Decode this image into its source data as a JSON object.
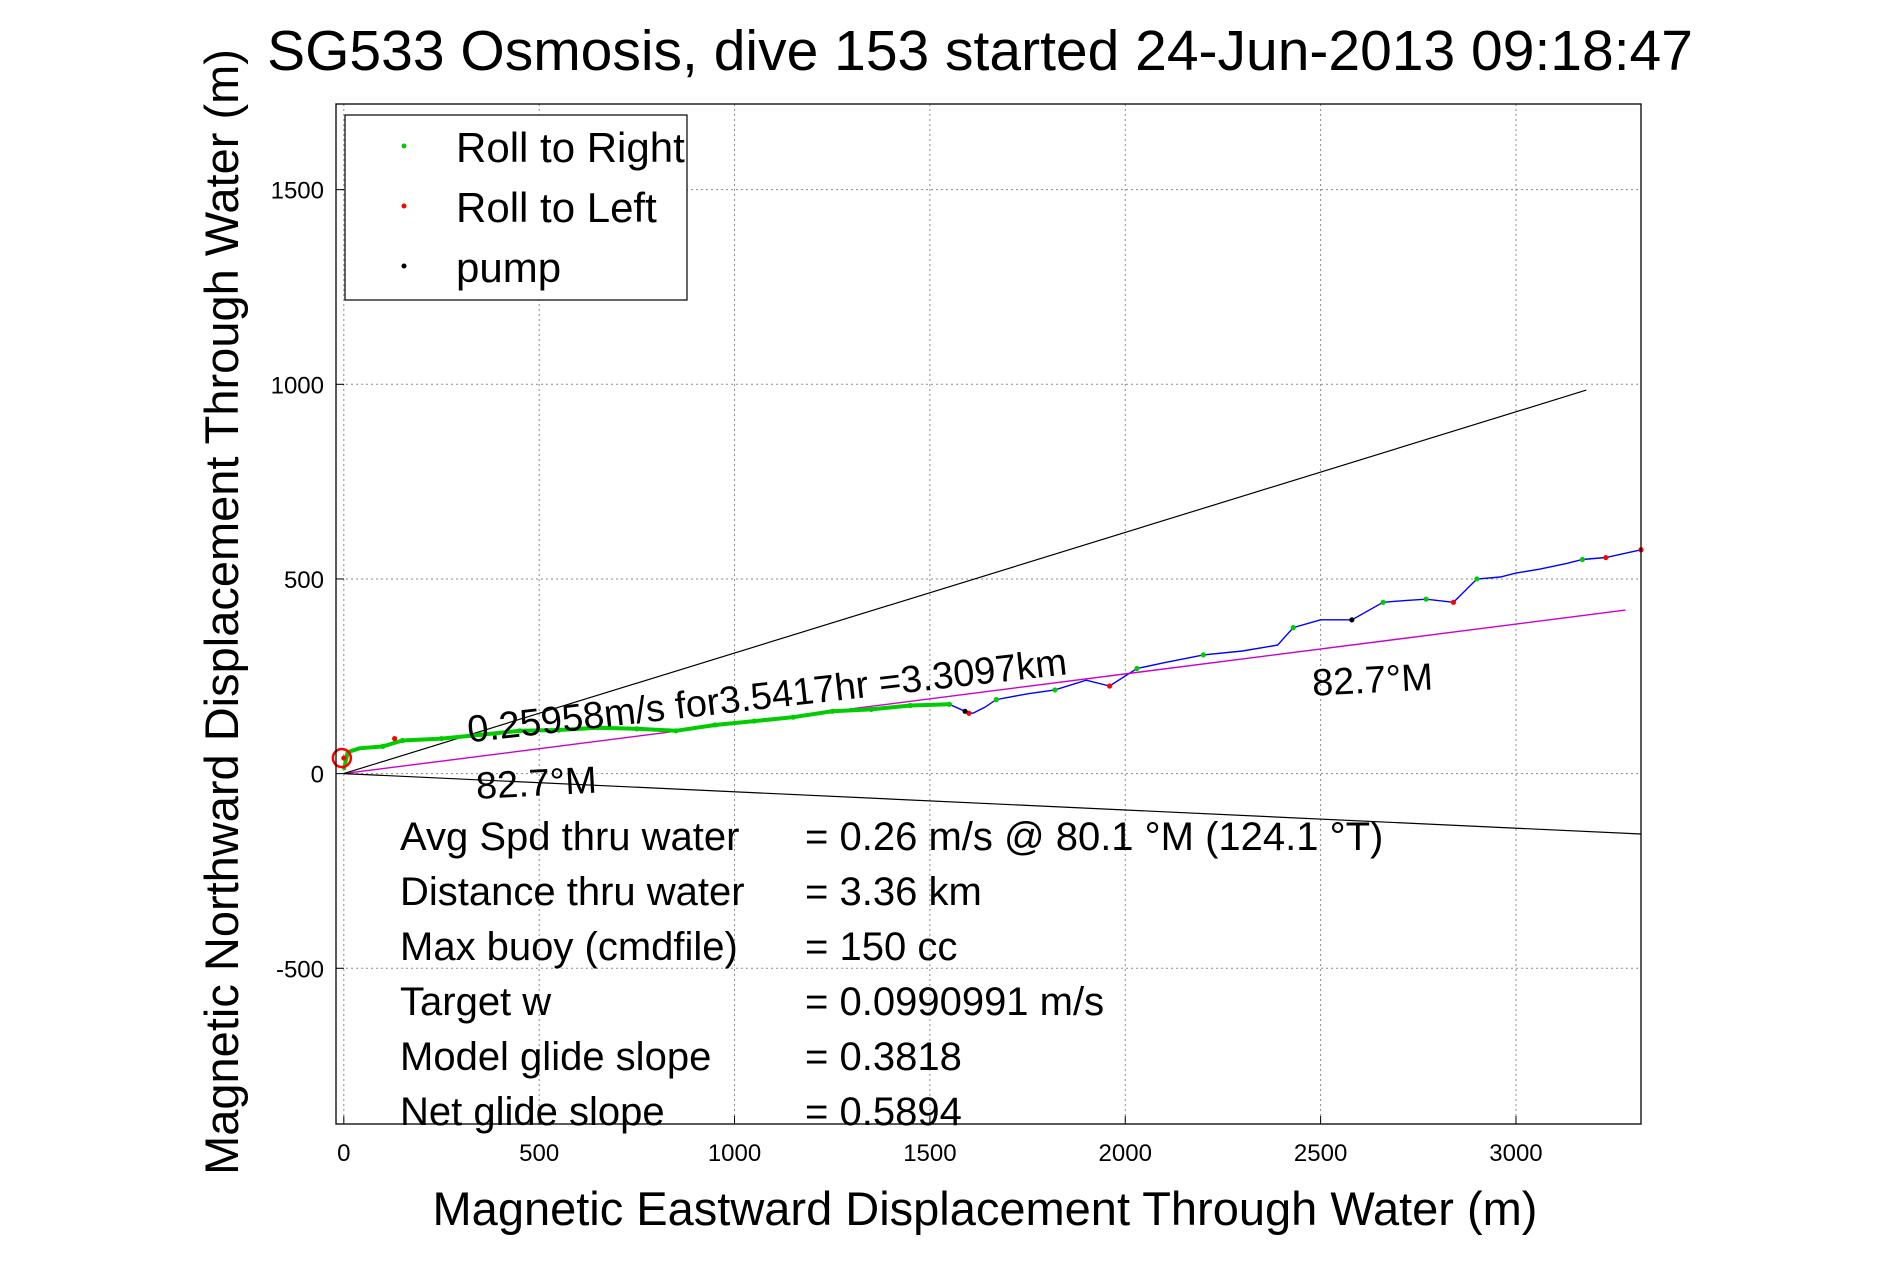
{
  "chart_data": {
    "type": "line",
    "title": "SG533 Osmosis, dive 153 started 24-Jun-2013 09:18:47",
    "xlabel": "Magnetic Eastward Displacement Through Water (m)",
    "ylabel": "Magnetic Northward Displacement Through Water (m)",
    "xlim": [
      -20,
      3320
    ],
    "ylim": [
      -900,
      1720
    ],
    "xticks": [
      0,
      500,
      1000,
      1500,
      2000,
      2500,
      3000
    ],
    "yticks": [
      -500,
      0,
      500,
      1000,
      1500
    ],
    "grid": true,
    "legend_position": "top-left",
    "legend": [
      {
        "label": "Roll to Right",
        "color": "#00cc00"
      },
      {
        "label": "Roll to Left",
        "color": "#ff0000"
      },
      {
        "label": "pump",
        "color": "#000000"
      }
    ],
    "colors": {
      "track": "#0000ff",
      "roll_right": "#00cc00",
      "roll_left": "#ff0000",
      "pump": "#000000",
      "heading_line": "#cc00cc",
      "cone_lines": "#000000"
    },
    "series": [
      {
        "name": "track",
        "points": [
          [
            0,
            10
          ],
          [
            10,
            55
          ],
          [
            40,
            65
          ],
          [
            100,
            70
          ],
          [
            150,
            85
          ],
          [
            250,
            90
          ],
          [
            350,
            100
          ],
          [
            450,
            110
          ],
          [
            550,
            112
          ],
          [
            650,
            118
          ],
          [
            750,
            115
          ],
          [
            850,
            110
          ],
          [
            950,
            125
          ],
          [
            1050,
            135
          ],
          [
            1150,
            145
          ],
          [
            1250,
            160
          ],
          [
            1350,
            165
          ],
          [
            1450,
            175
          ],
          [
            1550,
            178
          ],
          [
            1590,
            160
          ],
          [
            1610,
            155
          ],
          [
            1640,
            170
          ],
          [
            1670,
            190
          ],
          [
            1750,
            205
          ],
          [
            1820,
            215
          ],
          [
            1900,
            240
          ],
          [
            1960,
            225
          ],
          [
            2030,
            270
          ],
          [
            2100,
            285
          ],
          [
            2200,
            305
          ],
          [
            2300,
            315
          ],
          [
            2390,
            330
          ],
          [
            2430,
            375
          ],
          [
            2500,
            395
          ],
          [
            2580,
            395
          ],
          [
            2660,
            440
          ],
          [
            2720,
            445
          ],
          [
            2770,
            448
          ],
          [
            2840,
            440
          ],
          [
            2900,
            500
          ],
          [
            2960,
            505
          ],
          [
            3000,
            515
          ],
          [
            3060,
            525
          ],
          [
            3130,
            540
          ],
          [
            3170,
            550
          ],
          [
            3230,
            555
          ],
          [
            3320,
            575
          ]
        ]
      },
      {
        "name": "heading",
        "points": [
          [
            0,
            0
          ],
          [
            3280,
            420
          ]
        ]
      },
      {
        "name": "cone_upper",
        "points": [
          [
            0,
            0
          ],
          [
            3180,
            985
          ]
        ]
      },
      {
        "name": "cone_lower",
        "points": [
          [
            0,
            0
          ],
          [
            3320,
            -155
          ]
        ]
      }
    ],
    "markers": {
      "roll_right": [
        [
          100,
          70
        ],
        [
          150,
          85
        ],
        [
          250,
          90
        ],
        [
          350,
          100
        ],
        [
          450,
          110
        ],
        [
          550,
          112
        ],
        [
          650,
          118
        ],
        [
          750,
          115
        ],
        [
          850,
          110
        ],
        [
          950,
          125
        ],
        [
          1050,
          135
        ],
        [
          1150,
          145
        ],
        [
          1250,
          160
        ],
        [
          1350,
          165
        ],
        [
          1450,
          175
        ],
        [
          1550,
          178
        ],
        [
          1670,
          190
        ],
        [
          1820,
          215
        ],
        [
          2030,
          270
        ],
        [
          2200,
          305
        ],
        [
          2430,
          375
        ],
        [
          2660,
          440
        ],
        [
          2770,
          448
        ],
        [
          2900,
          500
        ],
        [
          3170,
          550
        ]
      ],
      "roll_left": [
        [
          0,
          40
        ],
        [
          130,
          90
        ],
        [
          1600,
          155
        ],
        [
          1960,
          225
        ],
        [
          2840,
          440
        ],
        [
          3230,
          555
        ],
        [
          3320,
          575
        ]
      ],
      "pump": [
        [
          1590,
          160
        ],
        [
          2580,
          395
        ]
      ]
    },
    "annotations": [
      {
        "text": "0.25958m/s for3.5417hr =3.3097km",
        "x": 320,
        "y": 80,
        "rotation": -6.5
      },
      {
        "text": "82.7°M",
        "x": 340,
        "y": -65,
        "rotation": -3
      },
      {
        "text": "82.7°M",
        "x": 2480,
        "y": 200,
        "rotation": -3
      }
    ],
    "stats": [
      {
        "label": "Avg Spd thru water",
        "value": "=  0.26 m/s @  80.1 °M (124.1 °T)"
      },
      {
        "label": "Distance thru water",
        "value": "=  3.36 km"
      },
      {
        "label": "Max buoy (cmdfile)",
        "value": "= 150 cc"
      },
      {
        "label": "Target w",
        "value": "= 0.0990991 m/s"
      },
      {
        "label": "Model glide slope",
        "value": "= 0.3818"
      },
      {
        "label": "Net glide slope",
        "value": "= 0.5894"
      }
    ]
  }
}
